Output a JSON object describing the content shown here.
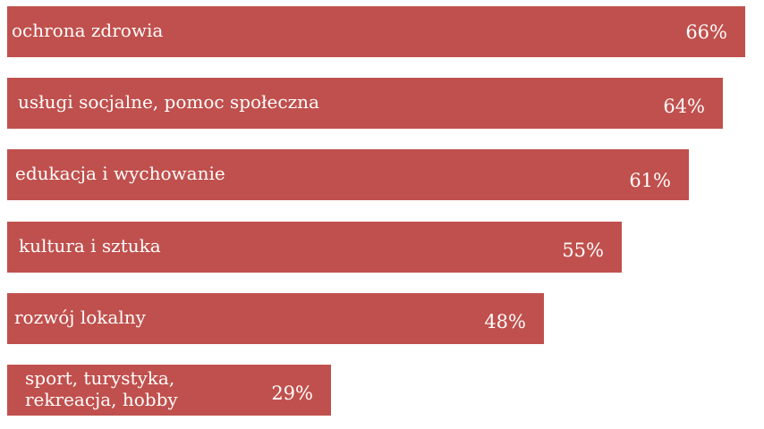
{
  "chart_data": {
    "type": "bar",
    "orientation": "horizontal",
    "categories": [
      "ochrona zdrowia",
      "usługi socjalne, pomoc społeczna",
      "edukacja i wychowanie",
      "kultura i sztuka",
      "rozwój lokalny",
      "sport, turystyka,\nrekreacja, hobby"
    ],
    "values": [
      66,
      64,
      61,
      55,
      48,
      29
    ],
    "value_labels": [
      "66%",
      "64%",
      "61%",
      "55%",
      "48%",
      "29%"
    ],
    "unit": "%",
    "title": "",
    "xlabel": "",
    "ylabel": "",
    "xlim": [
      0,
      67
    ],
    "grid": false,
    "legend": "none",
    "bar_color": "#c0504d",
    "label_color": "#ffffff"
  }
}
